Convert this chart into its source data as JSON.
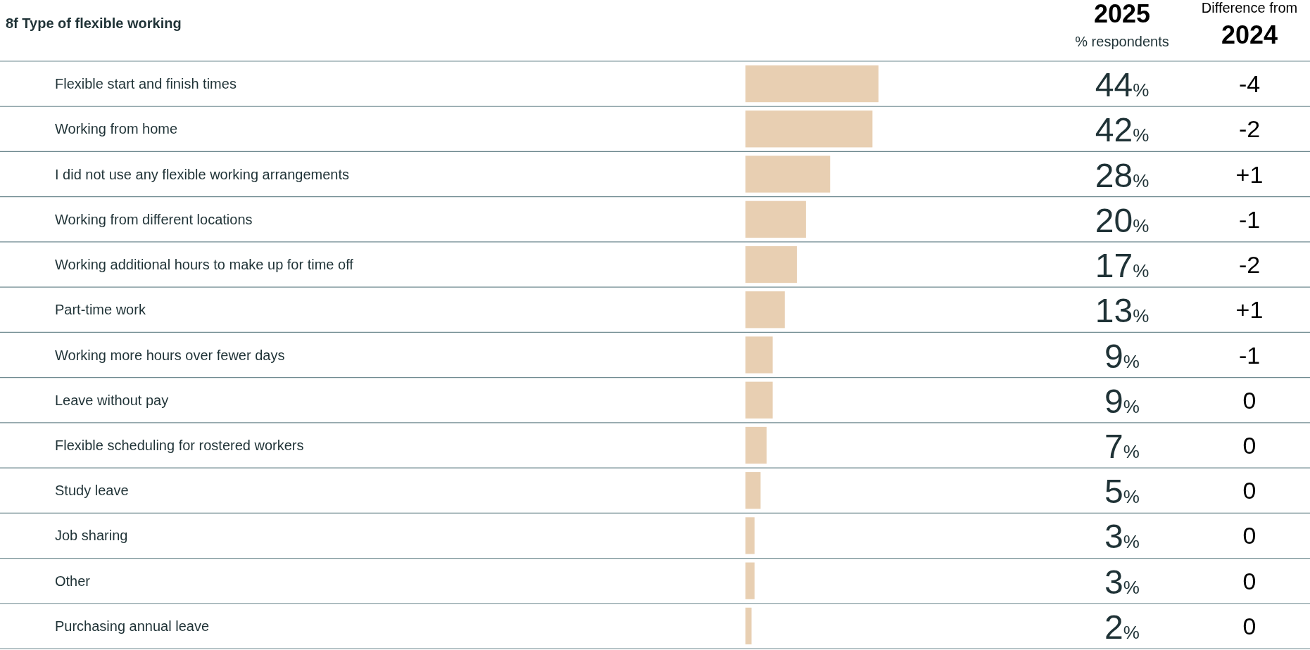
{
  "chart_data": {
    "type": "bar",
    "orientation": "horizontal",
    "title": "8f  Type of flexible working",
    "categories": [
      "Flexible start and finish times",
      "Working from home",
      "I did not use any flexible working arrangements",
      "Working from different locations",
      "Working additional hours to make up for time off",
      "Part-time work",
      "Working more hours over fewer days",
      "Leave without pay",
      "Flexible scheduling for rostered workers",
      "Study leave",
      "Job sharing",
      "Other",
      "Purchasing annual leave"
    ],
    "values": [
      44,
      42,
      28,
      20,
      17,
      13,
      9,
      9,
      7,
      5,
      3,
      3,
      2
    ],
    "value_labels": [
      "44%",
      "42%",
      "28%",
      "20%",
      "17%",
      "13%",
      "9%",
      "9%",
      "7%",
      "5%",
      "3%",
      "3%",
      "2%"
    ],
    "color": "#e8cfb2",
    "annotations": [
      "2025",
      "% respondents",
      "Difference from",
      "2024",
      "-4",
      "-2",
      "+1",
      "-1",
      "-2",
      "+1",
      "-1",
      "0",
      "0",
      "0",
      "0",
      "0",
      "0"
    ]
  }
}
